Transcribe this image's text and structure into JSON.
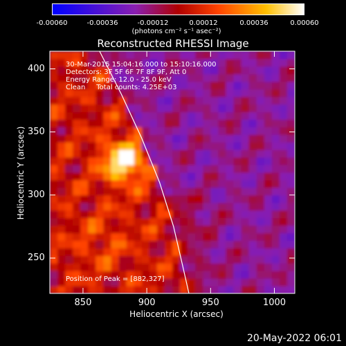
{
  "colorbar": {
    "ticks": [
      "-0.00060",
      "-0.00036",
      "-0.00012",
      "0.00012",
      "0.00036",
      "0.00060"
    ],
    "units": "(photons cm⁻² s⁻¹ asec⁻²)",
    "colors": [
      "#0000ff",
      "#8a1fb0",
      "#c00000",
      "#ff4400",
      "#ffc000",
      "#ffffff"
    ]
  },
  "chart_data": {
    "type": "heatmap",
    "title": "Reconstructed RHESSI Image",
    "xlabel": "Heliocentric X (arcsec)",
    "ylabel": "Heliocentric Y (arcsec)",
    "xlim": [
      824,
      1016
    ],
    "ylim": [
      222,
      414
    ],
    "x_ticks": [
      "850",
      "900",
      "950",
      "1000"
    ],
    "y_ticks": [
      "250",
      "300",
      "350",
      "400"
    ],
    "x_tick_values": [
      850,
      900,
      950,
      1000
    ],
    "y_tick_values": [
      250,
      300,
      350,
      400
    ],
    "value_range": [
      -0.0006,
      0.0006
    ],
    "peak_position": [
      882,
      327
    ],
    "limb_points": [
      [
        863,
        414
      ],
      [
        880,
        380
      ],
      [
        896,
        345
      ],
      [
        910,
        310
      ],
      [
        921,
        275
      ],
      [
        929,
        240
      ],
      [
        933,
        222
      ]
    ],
    "annotations": [
      "30-Mar-2015 15:04:16.000 to 15:10:16.000",
      "Detectors: 3F 5F 6F 7F 8F 9F, Att 0",
      "Energy Range: 12.0 - 25.0 keV",
      "Clean     Total counts: 4.25E+03"
    ],
    "peak_label": "Position of Peak = [882,327]"
  },
  "timestamp": "20-May-2022 06:01"
}
